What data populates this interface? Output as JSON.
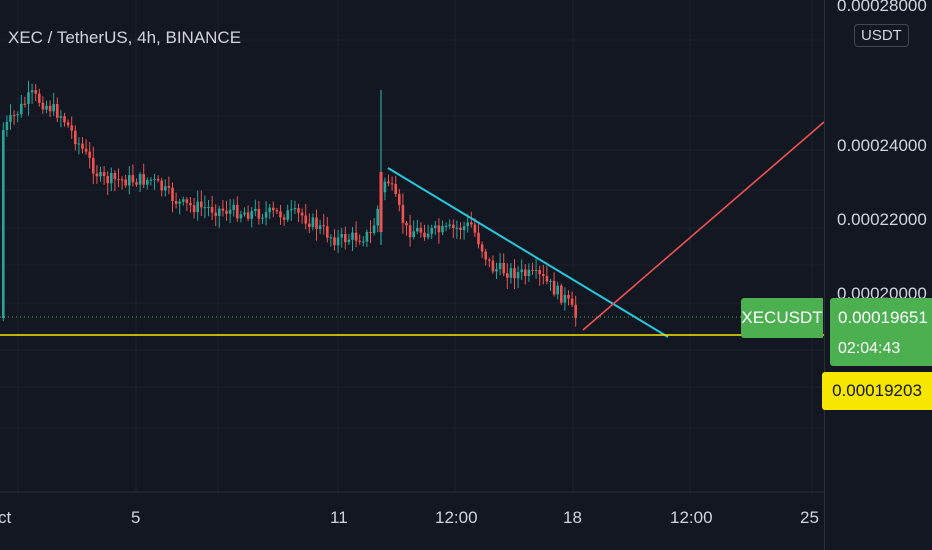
{
  "header": {
    "title": "XEC / TetherUS, 4h, BINANCE"
  },
  "price_axis": {
    "currency": "USDT",
    "ticks": [
      "0.00028000",
      "0.00024000",
      "0.00022000",
      "0.00020000"
    ]
  },
  "time_axis": {
    "labels": [
      "ct",
      "5",
      "11",
      "12:00",
      "18",
      "12:00",
      "25"
    ]
  },
  "last_price": {
    "symbol": "XECUSDT",
    "value": "0.00019651",
    "countdown": "02:04:43"
  },
  "horizontal_line": {
    "value": "0.00019203"
  },
  "colors": {
    "up": "#26a69a",
    "down": "#ef5350",
    "trendline": "#26c6da",
    "projection": "#ef5350",
    "hline": "#f7e600",
    "last": "#4caf50"
  },
  "chart_data": {
    "type": "candlestick",
    "ylim": [
      0.00018,
      0.00028
    ],
    "last_close": 0.00019651,
    "support": 0.00019203
  }
}
